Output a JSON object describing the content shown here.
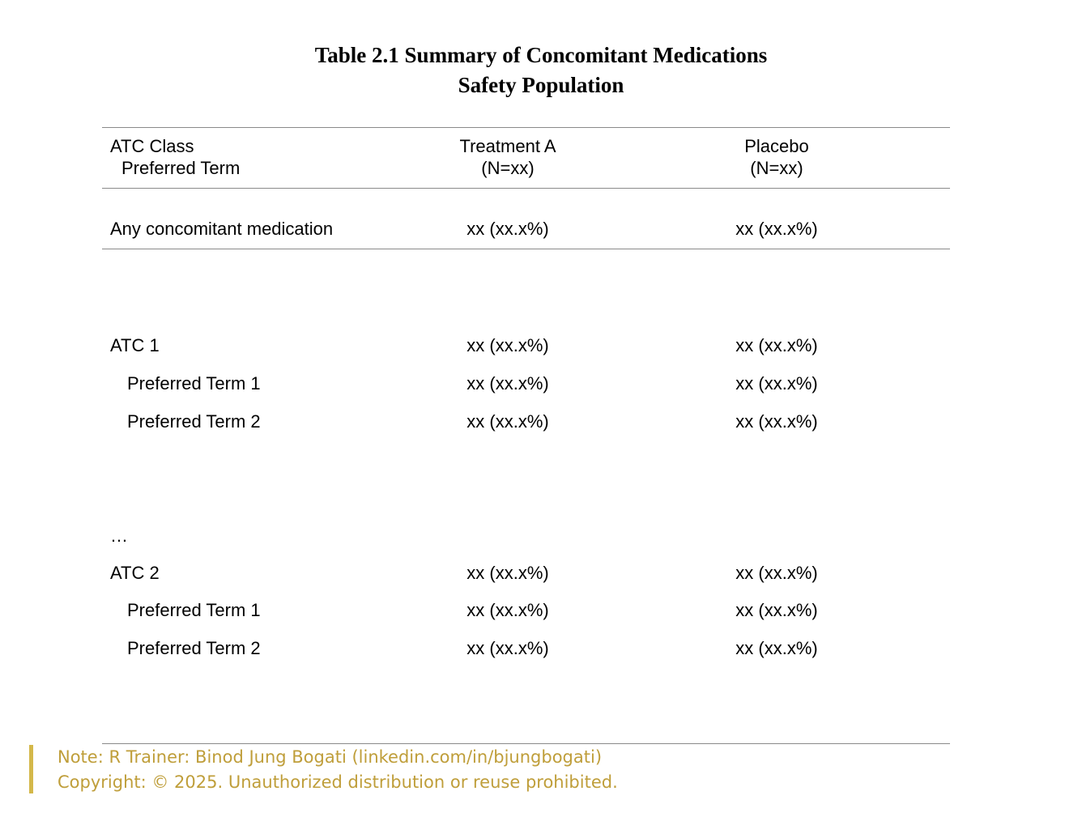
{
  "title": {
    "line1": "Table 2.1 Summary of Concomitant Medications",
    "line2": "Safety Population"
  },
  "header": {
    "col1_line1": "ATC Class",
    "col1_line2": "Preferred Term",
    "col2_line1": "Treatment A",
    "col2_line2": "(N=xx)",
    "col3_line1": "Placebo",
    "col3_line2": "(N=xx)"
  },
  "rows": [
    {
      "label": "Any concomitant medication",
      "treatment_a": "xx (xx.x%)",
      "placebo": "xx (xx.x%)"
    },
    {
      "label": "ATC 1",
      "treatment_a": "xx (xx.x%)",
      "placebo": "xx (xx.x%)"
    },
    {
      "label": "Preferred Term 1",
      "treatment_a": "xx (xx.x%)",
      "placebo": "xx (xx.x%)"
    },
    {
      "label": "Preferred Term 2",
      "treatment_a": "xx (xx.x%)",
      "placebo": "xx (xx.x%)"
    },
    {
      "label": "…"
    },
    {
      "label": "ATC 2",
      "treatment_a": "xx (xx.x%)",
      "placebo": "xx (xx.x%)"
    },
    {
      "label": "Preferred Term 1",
      "treatment_a": "xx (xx.x%)",
      "placebo": "xx (xx.x%)"
    },
    {
      "label": "Preferred Term 2",
      "treatment_a": "xx (xx.x%)",
      "placebo": "xx (xx.x%)"
    }
  ],
  "note": {
    "line1": "Note: R Trainer: Binod Jung Bogati (linkedin.com/in/bjungbogati)",
    "line2": "Copyright: © 2025. Unauthorized distribution or reuse prohibited."
  },
  "colors": {
    "note_text": "#bf9e3a",
    "note_bar": "#d4b84a",
    "rule": "#8a8a8a"
  }
}
